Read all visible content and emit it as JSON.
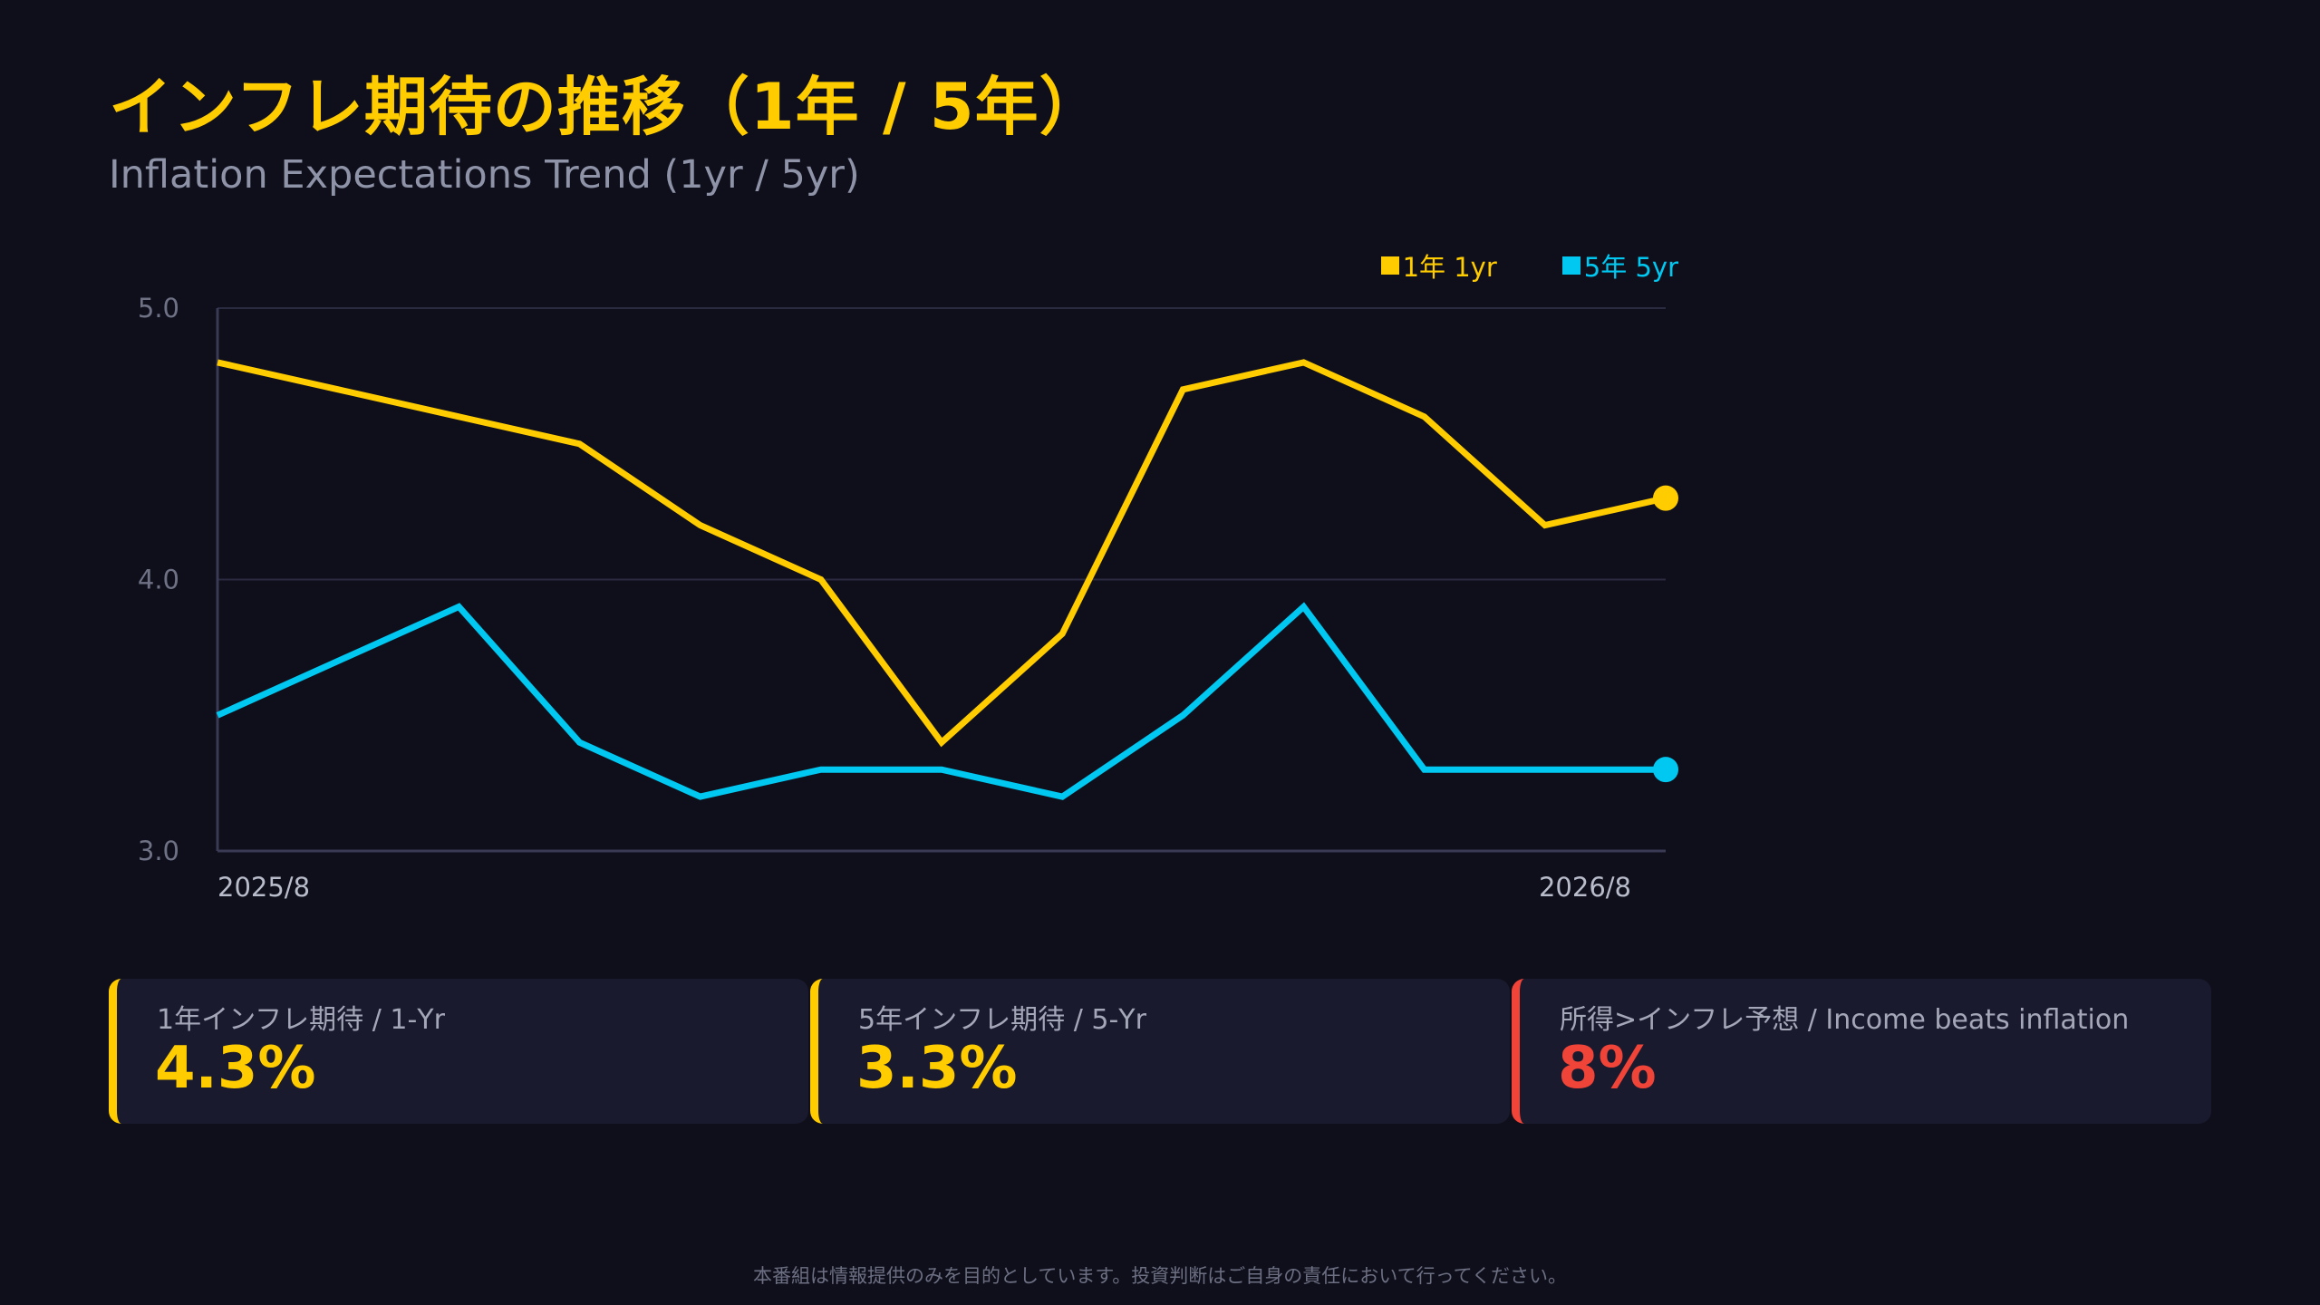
{
  "header": {
    "title": "インフレ期待の推移（1年 / 5年）",
    "subtitle": "Inflation Expectations Trend (1yr / 5yr)"
  },
  "legend": {
    "items": [
      {
        "label": "1年 1yr",
        "color": "#ffcc00"
      },
      {
        "label": "5年 5yr",
        "color": "#00c8f0"
      }
    ]
  },
  "chart_data": {
    "type": "line",
    "x": [
      "2025/8",
      "",
      "",
      "",
      "",
      "",
      "",
      "",
      "",
      "",
      "",
      "",
      "2026/8"
    ],
    "x_tick_labels": [
      "2025/8",
      "2026/8"
    ],
    "ylim": [
      3.0,
      5.0
    ],
    "yticks": [
      "3.0",
      "4.0",
      "5.0"
    ],
    "grid": true,
    "legend_position": "top-right",
    "series": [
      {
        "name": "1年 1yr",
        "color": "#ffcc00",
        "values": [
          4.8,
          4.7,
          4.6,
          4.5,
          4.2,
          4.0,
          3.4,
          3.8,
          4.7,
          4.8,
          4.6,
          4.2,
          4.3
        ]
      },
      {
        "name": "5年 5yr",
        "color": "#00c8f0",
        "values": [
          3.5,
          3.7,
          3.9,
          3.4,
          3.2,
          3.3,
          3.3,
          3.2,
          3.5,
          3.9,
          3.3,
          3.3,
          3.3
        ]
      }
    ]
  },
  "cards": [
    {
      "label": "1年インフレ期待 / 1-Yr",
      "value": "4.3%",
      "accent": "#ffcc00",
      "value_color": "#ffcc00"
    },
    {
      "label": "5年インフレ期待 / 5-Yr",
      "value": "3.3%",
      "accent": "#ffcc00",
      "value_color": "#ffcc00"
    },
    {
      "label": "所得>インフレ予想 / Income beats inflation",
      "value": "8%",
      "accent": "#f04438",
      "value_color": "#f04438"
    }
  ],
  "footer": {
    "disclaimer": "本番組は情報提供のみを目的としています。投資判断はご自身の責任において行ってください。"
  }
}
